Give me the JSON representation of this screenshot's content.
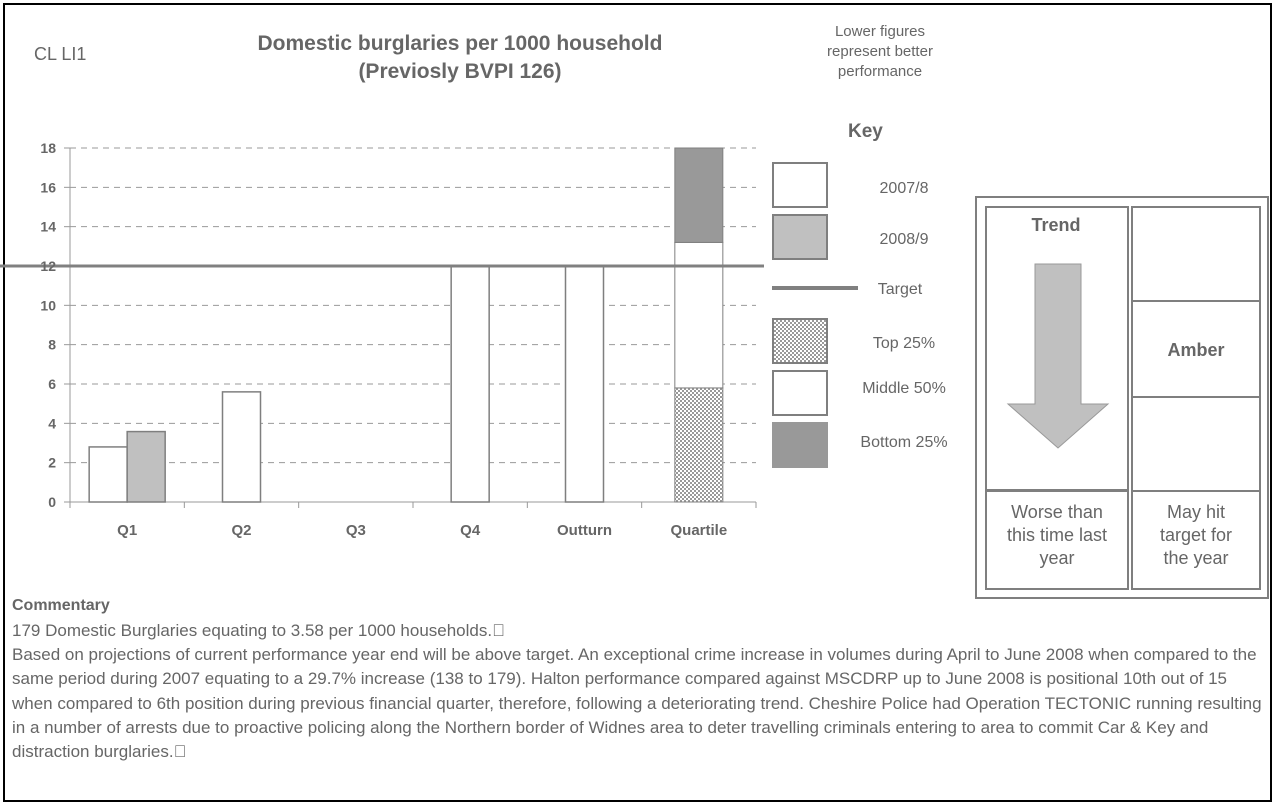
{
  "header": {
    "code": "CL LI1",
    "title_line1": "Domestic burglaries per 1000 household",
    "title_line2": "(Previosly BVPI 126)",
    "note_line1": "Lower figures",
    "note_line2": "represent better",
    "note_line3": "performance"
  },
  "key": {
    "title": "Key",
    "items": [
      {
        "label": "2007/8",
        "swatch": "white"
      },
      {
        "label": "2008/9",
        "swatch": "grey"
      },
      {
        "label": "Target",
        "swatch": "line"
      },
      {
        "label": "Top 25%",
        "swatch": "checker"
      },
      {
        "label": "Middle 50%",
        "swatch": "white"
      },
      {
        "label": "Bottom 25%",
        "swatch": "dark"
      }
    ]
  },
  "chart_data": {
    "type": "bar",
    "title": "Domestic burglaries per 1000 household (Previosly BVPI 126)",
    "categories": [
      "Q1",
      "Q2",
      "Q3",
      "Q4",
      "Outturn",
      "Quartile"
    ],
    "ylim": [
      0,
      18
    ],
    "yticks": [
      0,
      2,
      4,
      6,
      8,
      10,
      12,
      14,
      16,
      18
    ],
    "grid": true,
    "series": [
      {
        "name": "2007/8",
        "values": [
          2.8,
          5.6,
          null,
          12,
          12,
          null
        ],
        "color": "#ffffff"
      },
      {
        "name": "2008/9",
        "values": [
          3.58,
          null,
          null,
          null,
          null,
          null
        ],
        "color": "#c0c0c0"
      }
    ],
    "target": {
      "name": "Target",
      "value": 12,
      "color": "#808080"
    },
    "quartile": {
      "top_25": [
        0,
        5.8
      ],
      "middle_50": [
        5.8,
        13.2
      ],
      "bottom_25": [
        13.2,
        18
      ]
    }
  },
  "trend": {
    "title": "Trend",
    "status": "Amber",
    "left_caption": [
      "Worse than",
      "this time last",
      "year"
    ],
    "right_caption": [
      "May hit",
      "target for",
      "the year"
    ],
    "arrow": "down-arrow-icon"
  },
  "commentary": {
    "heading": "Commentary",
    "p1": "179 Domestic Burglaries equating to 3.58 per 1000 households.",
    "p2": "Based on projections of current performance year end will be above target. An exceptional crime increase in volumes during April to June 2008 when compared to the same period during 2007 equating to a 29.7% increase (138 to 179). Halton performance compared against MSCDRP up to June 2008 is positional 10th out of 15 when compared to 6th position during previous financial quarter, therefore, following a deteriorating trend. Cheshire Police had Operation TECTONIC running resulting in a number of arrests due to proactive policing along the Northern border of Widnes area to deter travelling criminals entering to area to commit Car & Key and distraction burglaries."
  }
}
